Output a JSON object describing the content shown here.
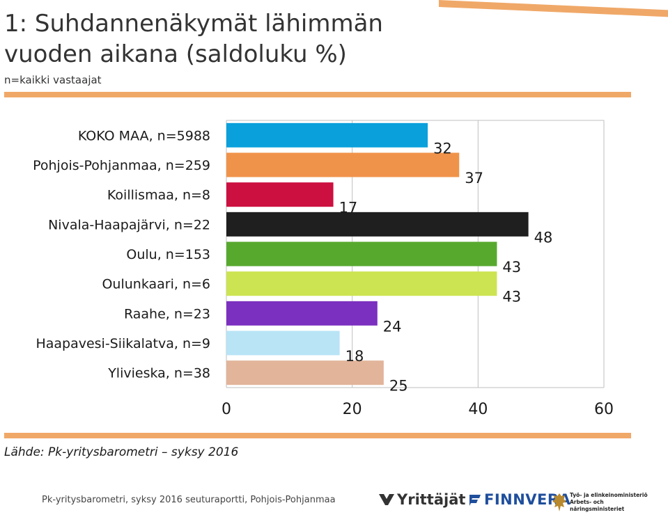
{
  "title": "1: Suhdannenäkymät lähimmän vuoden aikana (saldoluku %)",
  "subtitle": "n=kaikki vastaajat",
  "source": "Lähde: Pk-yritysbarometri – syksy 2016",
  "footer": "Pk-yritysbarometri, syksy 2016 seuturaportti, Pohjois-Pohjanmaa",
  "logos": {
    "yrittajat": "Yrittäjät",
    "finnvera": "FINNVERA",
    "tem_line1": "Työ- ja elinkeinoministeriö",
    "tem_line2": "Arbets- och näringsministeriet"
  },
  "colors": {
    "accent": "#f0a868",
    "gridline": "#bfbfbf"
  },
  "chart_data": {
    "type": "bar",
    "orientation": "horizontal",
    "categories": [
      "KOKO MAA, n=5988",
      "Pohjois-Pohjanmaa, n=259",
      "Koillismaa, n=8",
      "Nivala-Haapajärvi, n=22",
      "Oulu, n=153",
      "Oulunkaari, n=6",
      "Raahe, n=23",
      "Haapavesi-Siikalatva, n=9",
      "Ylivieska, n=38"
    ],
    "values": [
      32,
      37,
      17,
      48,
      43,
      43,
      24,
      18,
      25
    ],
    "bar_colors": [
      "#0aa0dc",
      "#f0934a",
      "#cc1040",
      "#1f1f1f",
      "#57a92e",
      "#cde452",
      "#7b30c0",
      "#b8e4f6",
      "#e2b49a"
    ],
    "xlim": [
      0,
      60
    ],
    "xticks": [
      0,
      20,
      40,
      60
    ],
    "grid": true
  }
}
